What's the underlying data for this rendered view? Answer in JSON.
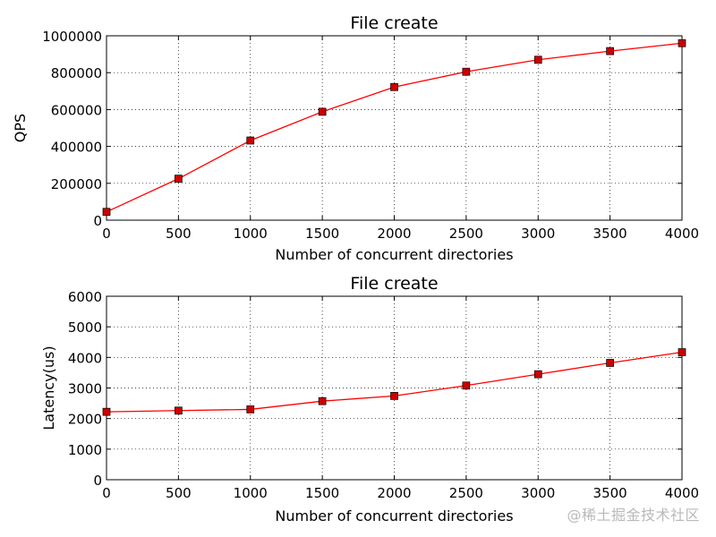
{
  "chart_data": [
    {
      "type": "line",
      "title": "File create",
      "xlabel": "Number of concurrent directories",
      "ylabel": "QPS",
      "xlim": [
        0,
        4000
      ],
      "ylim": [
        0,
        1000000
      ],
      "xticks": [
        0,
        500,
        1000,
        1500,
        2000,
        2500,
        3000,
        3500,
        4000
      ],
      "yticks": [
        0,
        200000,
        400000,
        600000,
        800000,
        1000000
      ],
      "x": [
        0,
        500,
        1000,
        1500,
        2000,
        2500,
        3000,
        3500,
        4000
      ],
      "series": [
        {
          "values": [
            45000,
            225000,
            432000,
            588000,
            722000,
            805000,
            870000,
            917000,
            960000
          ],
          "color": "#ff0000",
          "marker": "square",
          "marker_color": "#cc0000"
        }
      ],
      "grid": true,
      "legend": "none"
    },
    {
      "type": "line",
      "title": "File create",
      "xlabel": "Number of concurrent directories",
      "ylabel": "Latency(us)",
      "xlim": [
        0,
        4000
      ],
      "ylim": [
        0,
        6000
      ],
      "xticks": [
        0,
        500,
        1000,
        1500,
        2000,
        2500,
        3000,
        3500,
        4000
      ],
      "yticks": [
        0,
        1000,
        2000,
        3000,
        4000,
        5000,
        6000
      ],
      "x": [
        0,
        500,
        1000,
        1500,
        2000,
        2500,
        3000,
        3500,
        4000
      ],
      "series": [
        {
          "values": [
            2220,
            2260,
            2300,
            2570,
            2740,
            3080,
            3450,
            3820,
            4170
          ],
          "color": "#ff0000",
          "marker": "square",
          "marker_color": "#cc0000"
        }
      ],
      "grid": true,
      "legend": "none"
    }
  ],
  "watermark": "@稀土掘金技术社区"
}
